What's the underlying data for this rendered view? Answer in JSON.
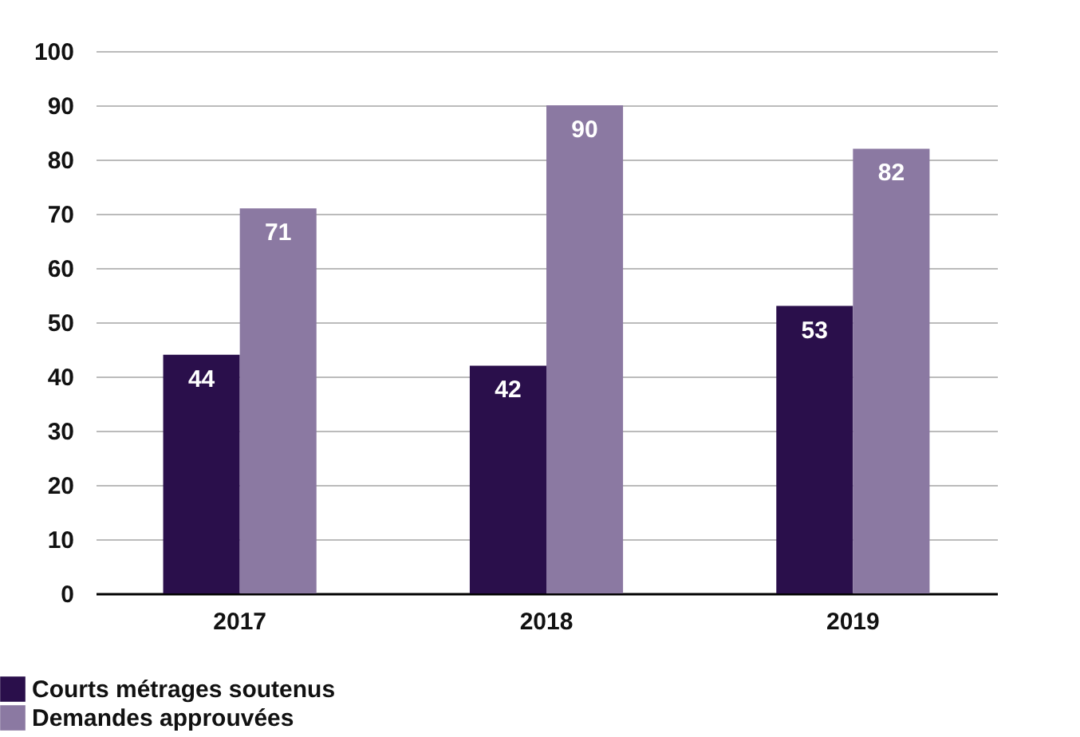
{
  "chart_data": {
    "type": "bar",
    "categories": [
      "2017",
      "2018",
      "2019"
    ],
    "series": [
      {
        "name": "Courts métrages soutenus",
        "color": "#2a0f4b",
        "values": [
          44,
          42,
          53
        ]
      },
      {
        "name": "Demandes approuvées",
        "color": "#8b79a2",
        "values": [
          71,
          90,
          82
        ]
      }
    ],
    "ylim": [
      0,
      100
    ],
    "yticks": [
      0,
      10,
      20,
      30,
      40,
      50,
      60,
      70,
      80,
      90,
      100
    ],
    "grid": "y",
    "legend": "bottom left",
    "data_labels": true
  }
}
